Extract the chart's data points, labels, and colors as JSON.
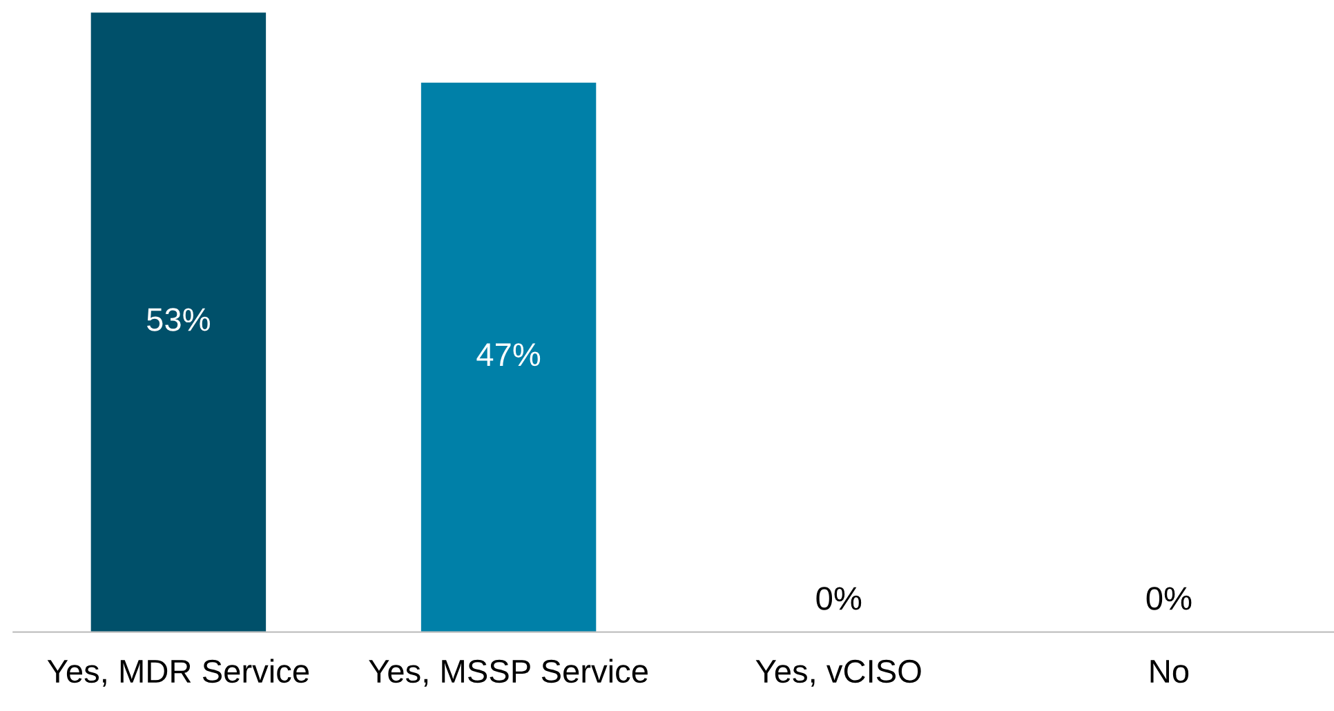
{
  "chart_data": {
    "type": "bar",
    "categories": [
      "Yes, MDR Service",
      "Yes, MSSP Service",
      "Yes, vCISO",
      "No"
    ],
    "values": [
      53,
      47,
      0,
      0
    ],
    "colors": [
      "#00506a",
      "#0080a8",
      "#0080a8",
      "#0080a8"
    ],
    "value_labels": [
      "53%",
      "47%",
      "0%",
      "0%"
    ],
    "grid": false,
    "legend": false
  }
}
